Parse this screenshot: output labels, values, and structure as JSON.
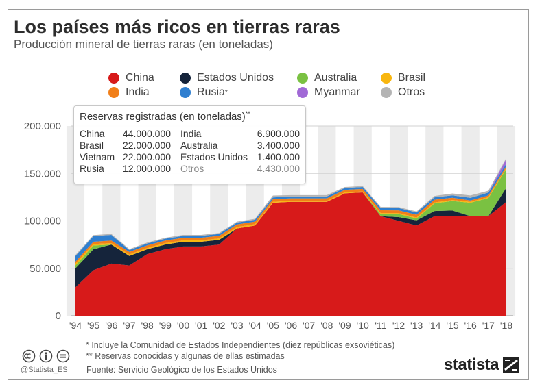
{
  "title": "Los países más ricos en tierras raras",
  "subtitle": "Producción mineral de tierras raras (en toneladas)",
  "legend": [
    {
      "name": "China",
      "color": "#d71a1a"
    },
    {
      "name": "Estados Unidos",
      "color": "#15243b"
    },
    {
      "name": "Australia",
      "color": "#7ac142"
    },
    {
      "name": "Brasil",
      "color": "#f8b60f"
    },
    {
      "name": "India",
      "color": "#f17f19"
    },
    {
      "name": "Rusia",
      "sup": "*",
      "color": "#2f7fd0"
    },
    {
      "name": "Myanmar",
      "color": "#a169d6"
    },
    {
      "name": "Otros",
      "color": "#b4b4b4"
    }
  ],
  "reserves": {
    "title": "Reservas registradas (en toneladas)",
    "title_sup": "**",
    "left": [
      {
        "country": "China",
        "value": "44.000.000"
      },
      {
        "country": "Brasil",
        "value": "22.000.000"
      },
      {
        "country": "Vietnam",
        "value": "22.000.000"
      },
      {
        "country": "Rusia",
        "value": "12.000.000"
      }
    ],
    "right": [
      {
        "country": "India",
        "value": "6.900.000"
      },
      {
        "country": "Australia",
        "value": "3.400.000"
      },
      {
        "country": "Estados Unidos",
        "value": "1.400.000"
      },
      {
        "country": "Otros",
        "value": "4.430.000"
      }
    ]
  },
  "chart_data": {
    "type": "area",
    "stacked": true,
    "title": "Los países más ricos en tierras raras",
    "subtitle": "Producción mineral de tierras raras (en toneladas)",
    "categories": [
      "'94",
      "'95",
      "'96",
      "'97",
      "'98",
      "'99",
      "'00",
      "'01",
      "'02",
      "'03",
      "'04",
      "'05",
      "'06",
      "'07",
      "'08",
      "'09",
      "'10",
      "'11",
      "'12",
      "'13",
      "'14",
      "'15",
      "'16",
      "'17",
      "'18"
    ],
    "y_ticks": [
      0,
      50000,
      100000,
      150000,
      200000
    ],
    "y_tick_labels": [
      "0",
      "50.000",
      "100.000",
      "150.000",
      "200.000"
    ],
    "ylim": [
      0,
      200000
    ],
    "series": [
      {
        "name": "China",
        "color": "#d71a1a",
        "values": [
          30000,
          48000,
          55000,
          53000,
          65000,
          70000,
          73000,
          73000,
          75000,
          92000,
          95000,
          119000,
          120000,
          120000,
          120000,
          129000,
          130000,
          105000,
          100000,
          95000,
          105000,
          105000,
          105000,
          105000,
          120000
        ]
      },
      {
        "name": "Estados Unidos",
        "color": "#15243b",
        "values": [
          20000,
          22000,
          20000,
          10000,
          5000,
          5000,
          5000,
          5000,
          5000,
          0,
          0,
          0,
          0,
          0,
          0,
          0,
          0,
          0,
          4000,
          5500,
          5400,
          5900,
          0,
          0,
          15000
        ]
      },
      {
        "name": "Australia",
        "color": "#7ac142",
        "values": [
          3000,
          4000,
          0,
          0,
          0,
          0,
          0,
          0,
          0,
          0,
          0,
          0,
          0,
          0,
          0,
          0,
          0,
          2200,
          3200,
          2000,
          8000,
          10000,
          14000,
          19000,
          20000
        ]
      },
      {
        "name": "Brasil",
        "color": "#f8b60f",
        "values": [
          2000,
          1500,
          1500,
          1500,
          1500,
          1500,
          1500,
          1500,
          1500,
          1500,
          1500,
          1000,
          1000,
          1000,
          1000,
          1000,
          1000,
          1000,
          1000,
          1000,
          1000,
          1000,
          1000,
          1000,
          1000
        ]
      },
      {
        "name": "India",
        "color": "#f17f19",
        "values": [
          2000,
          2500,
          2700,
          2700,
          2700,
          2700,
          2700,
          2700,
          2700,
          2700,
          2700,
          2700,
          2700,
          2700,
          2700,
          2700,
          2700,
          3000,
          2900,
          2900,
          2900,
          2500,
          1500,
          1800,
          1800
        ]
      },
      {
        "name": "Rusia",
        "color": "#2f7fd0",
        "values": [
          6000,
          6000,
          6000,
          2000,
          2000,
          2000,
          2000,
          2000,
          2000,
          2000,
          2000,
          2000,
          2000,
          2000,
          2000,
          2000,
          2000,
          2500,
          2500,
          2500,
          2500,
          2500,
          2800,
          3000,
          2600
        ]
      },
      {
        "name": "Myanmar",
        "color": "#a169d6",
        "values": [
          0,
          0,
          0,
          0,
          0,
          0,
          0,
          0,
          0,
          0,
          0,
          0,
          0,
          0,
          0,
          0,
          0,
          0,
          0,
          0,
          0,
          0,
          0,
          0,
          5000
        ]
      },
      {
        "name": "Otros",
        "color": "#b4b4b4",
        "values": [
          1000,
          1000,
          1000,
          1000,
          1000,
          1000,
          1000,
          1000,
          1000,
          1000,
          1000,
          2000,
          1500,
          1500,
          1500,
          1000,
          1000,
          1000,
          1000,
          1000,
          1500,
          2000,
          2500,
          2000,
          1000
        ]
      }
    ]
  },
  "footnotes": [
    "*   Incluye la Comunidad de Estados Independientes (diez repúblicas exsoviéticas)",
    "** Reservas conocidas y algunas de ellas estimadas"
  ],
  "source": "Fuente: Servicio Geológico de los Estados Unidos",
  "handle": "@Statista_ES",
  "brand": "statista"
}
